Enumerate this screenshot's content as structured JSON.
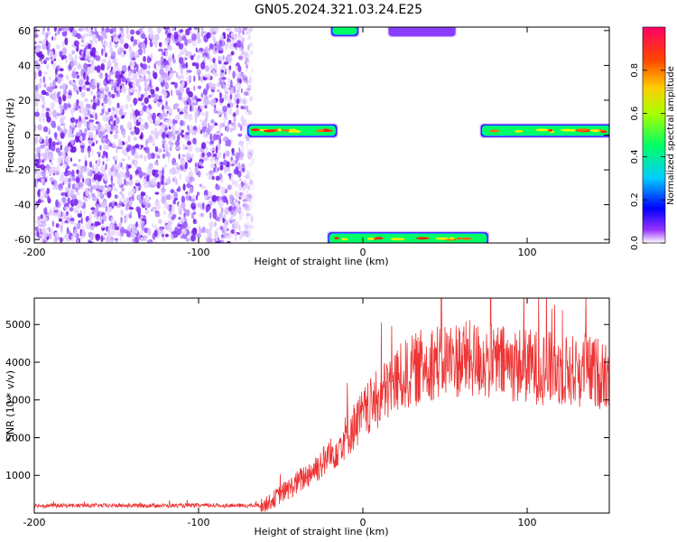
{
  "title": "GN05.2024.321.03.24.E25",
  "chart_data": [
    {
      "type": "heatmap",
      "xlabel": "Height of straight line (km)",
      "ylabel": "Frequency (Hz)",
      "xlim": [
        -200,
        150
      ],
      "ylim": [
        -62,
        62
      ],
      "xticks": [
        -200,
        -100,
        0,
        100
      ],
      "yticks": [
        -60,
        -40,
        -20,
        0,
        20,
        40,
        60
      ],
      "colorbar": {
        "label": "Normalized spectral amplitude",
        "range": [
          0,
          1
        ],
        "ticks": [
          "0.0",
          "0.2",
          "0.4",
          "0.6",
          "0.8"
        ],
        "colors": [
          "#ffffff",
          "#6600cc",
          "#0000ff",
          "#00ccff",
          "#00ff66",
          "#ffee00",
          "#ff6600",
          "#ff0033"
        ]
      },
      "features": [
        {
          "region": "noise",
          "x": [
            -200,
            -66
          ],
          "y": [
            -62,
            62
          ],
          "level": 0.15
        },
        {
          "region": "band",
          "x": [
            -69,
            -17
          ],
          "y": [
            0,
            5
          ],
          "level": 0.95
        },
        {
          "region": "band",
          "x": [
            73,
            150
          ],
          "y": [
            0,
            5
          ],
          "level": 0.75
        },
        {
          "region": "band",
          "x": [
            -20,
            75
          ],
          "y": [
            -62,
            -57
          ],
          "level": 0.95
        },
        {
          "region": "band",
          "x": [
            -18,
            -4
          ],
          "y": [
            58,
            62
          ],
          "level": 0.4
        },
        {
          "region": "band",
          "x": [
            17,
            55
          ],
          "y": [
            58,
            62
          ],
          "level": 0.15
        }
      ]
    },
    {
      "type": "line",
      "xlabel": "Height of straight line (km)",
      "ylabel": "SNR (10 * v/v)",
      "xlim": [
        -200,
        150
      ],
      "ylim": [
        0,
        5700
      ],
      "xticks": [
        -200,
        -100,
        0,
        100
      ],
      "yticks": [
        1000,
        2000,
        3000,
        4000,
        5000
      ],
      "color": "#ee3333",
      "trend": [
        [
          -200,
          200
        ],
        [
          -60,
          200
        ],
        [
          -40,
          800
        ],
        [
          -20,
          1500
        ],
        [
          0,
          2600
        ],
        [
          20,
          3500
        ],
        [
          40,
          4000
        ],
        [
          60,
          4100
        ],
        [
          80,
          4000
        ],
        [
          100,
          3900
        ],
        [
          120,
          3800
        ],
        [
          150,
          3700
        ]
      ]
    }
  ]
}
